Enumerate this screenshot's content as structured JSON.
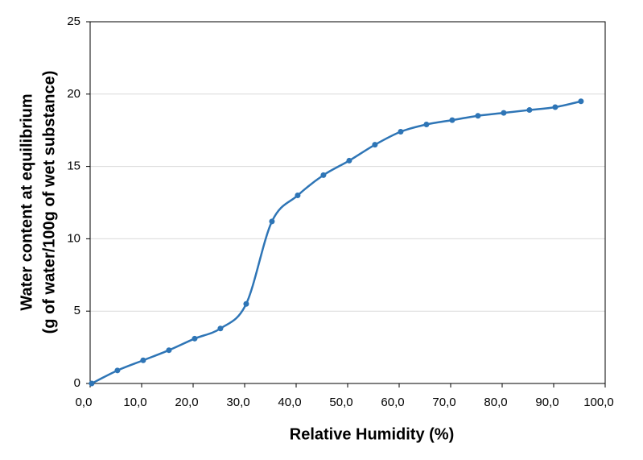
{
  "chart_data": {
    "type": "line",
    "x_label": "Relative Humidity (%)",
    "y_label": [
      "Water content at equilibrium",
      "(g of water/100g of wet substance)"
    ],
    "xlim": [
      0,
      100
    ],
    "xticks": [
      {
        "value": 0,
        "label": "0,0"
      },
      {
        "value": 10,
        "label": "10,0"
      },
      {
        "value": 20,
        "label": "20,0"
      },
      {
        "value": 30,
        "label": "30,0"
      },
      {
        "value": 40,
        "label": "40,0"
      },
      {
        "value": 50,
        "label": "50,0"
      },
      {
        "value": 60,
        "label": "60,0"
      },
      {
        "value": 70,
        "label": "70,0"
      },
      {
        "value": 80,
        "label": "80,0"
      },
      {
        "value": 90,
        "label": "90,0"
      },
      {
        "value": 100,
        "label": "100,0"
      }
    ],
    "ylim": [
      0,
      25
    ],
    "yticks": [
      0,
      5,
      10,
      15,
      20,
      25
    ],
    "grid": true,
    "smooth": true,
    "x": [
      0.3,
      5.3,
      10.3,
      15.3,
      20.3,
      25.3,
      30.3,
      35.3,
      40.3,
      45.3,
      50.3,
      55.3,
      60.3,
      65.3,
      70.3,
      75.3,
      80.3,
      85.3,
      90.3,
      95.3
    ],
    "series": [
      {
        "color": "#2e75b6",
        "values": [
          0,
          0.9,
          1.6,
          2.3,
          3.1,
          3.8,
          5.5,
          11.2,
          13.0,
          14.4,
          15.4,
          16.5,
          17.4,
          17.9,
          18.2,
          18.5,
          18.7,
          18.9,
          19.1,
          19.5
        ]
      }
    ]
  }
}
